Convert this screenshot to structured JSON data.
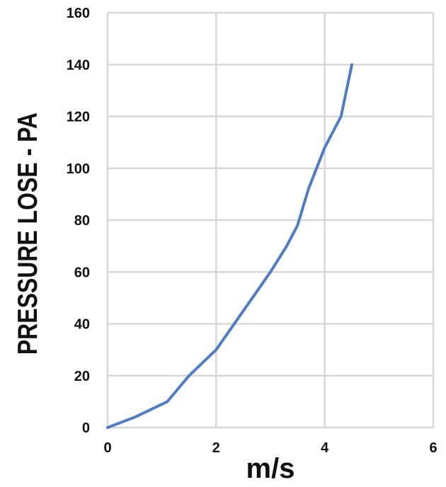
{
  "chart_data": {
    "type": "line",
    "title": "",
    "xlabel": "m/s",
    "ylabel": "PRESSURE LOSE - PA",
    "xlim": [
      0,
      6
    ],
    "ylim": [
      0,
      160
    ],
    "x_ticks": [
      "0",
      "2",
      "4",
      "6"
    ],
    "y_ticks": [
      "0",
      "20",
      "40",
      "60",
      "80",
      "100",
      "120",
      "140",
      "160"
    ],
    "grid": true,
    "legend": "none",
    "series": [
      {
        "color": "#4f7cc3",
        "x": [
          0,
          0.5,
          1.1,
          1.5,
          2.0,
          2.5,
          3.0,
          3.3,
          3.5,
          3.6,
          3.7,
          4.0,
          4.3,
          4.5
        ],
        "y": [
          0,
          4,
          10,
          20,
          30,
          45,
          60,
          70,
          78,
          85,
          92,
          108,
          120,
          140
        ]
      }
    ]
  }
}
